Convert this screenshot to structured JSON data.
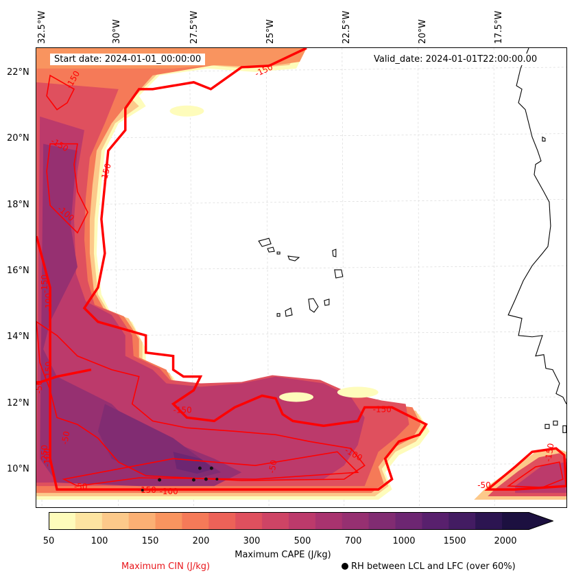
{
  "header": {
    "start_date": "Start date: 2024-01-01_00:00:00",
    "valid_date": "Valid_date: 2024-01-01T22:00:00.00"
  },
  "axes": {
    "lon_labels": [
      "32.5°W",
      "30°W",
      "27.5°W",
      "25°W",
      "22.5°W",
      "20°W",
      "17.5°W"
    ],
    "lat_labels": [
      "22°N",
      "20°N",
      "18°N",
      "16°N",
      "14°N",
      "12°N",
      "10°N"
    ]
  },
  "colorbar": {
    "ticks": [
      "50",
      "100",
      "150",
      "200",
      "300",
      "500",
      "700",
      "1000",
      "1500",
      "2000"
    ],
    "title": "Maximum CAPE (J/kg)",
    "colors": [
      "#fefcbb",
      "#fde4a1",
      "#fcc98a",
      "#fbb074",
      "#f9945f",
      "#f57a58",
      "#ec6258",
      "#df505e",
      "#ce4465",
      "#bc3a6b",
      "#a9336f",
      "#963071",
      "#812c72",
      "#6d2672",
      "#58206d",
      "#431c62",
      "#2c1551",
      "#1c1040"
    ]
  },
  "legend": {
    "cin_label": "Maximum CIN (J/kg)",
    "rh_label": "RH between LCL and LFC (over 60%)"
  },
  "contour_labels": [
    "-150",
    "-150",
    "-150",
    "-150",
    "-100",
    "-150",
    "-100",
    "-50",
    "-150",
    "-50",
    "-100",
    "-250",
    "-150",
    "-50",
    "-150",
    "-100",
    "-100",
    "-50",
    "-150",
    "-50",
    "-150"
  ],
  "colors": {
    "cin_line": "#ff0000",
    "coast": "#000000",
    "grid": "#cccccc"
  }
}
